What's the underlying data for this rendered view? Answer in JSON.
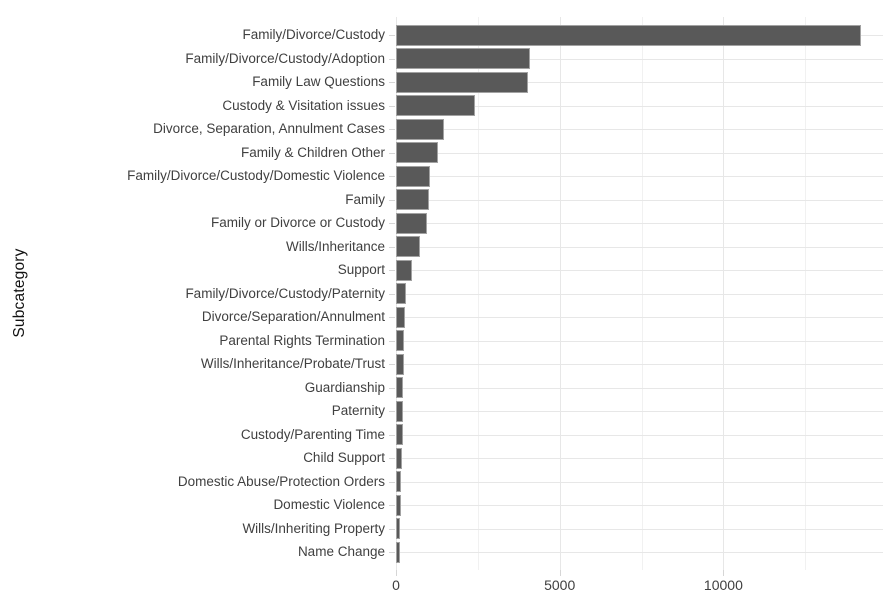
{
  "chart_data": {
    "type": "bar",
    "orientation": "horizontal",
    "title": "",
    "xlabel": "",
    "ylabel": "Subcategory",
    "legend_position": "none",
    "grid": "on",
    "xlim": [
      0,
      14875
    ],
    "x_tick_labels": [
      "0",
      "5000",
      "10000"
    ],
    "x_major_gridlines": [
      0,
      5000,
      10000
    ],
    "x_minor_gridlines": [
      2500,
      7500,
      12500
    ],
    "categories": [
      "Family/Divorce/Custody",
      "Family/Divorce/Custody/Adoption",
      "Family Law Questions",
      "Custody & Visitation issues",
      "Divorce, Separation, Annulment Cases",
      "Family & Children Other",
      "Family/Divorce/Custody/Domestic Violence",
      "Family",
      "Family or Divorce or Custody",
      "Wills/Inheritance",
      "Support",
      "Family/Divorce/Custody/Paternity",
      "Divorce/Separation/Annulment",
      "Parental Rights Termination",
      "Wills/Inheritance/Probate/Trust",
      "Guardianship",
      "Paternity",
      "Custody/Parenting Time",
      "Child Support",
      "Domestic Abuse/Protection Orders",
      "Domestic Violence",
      "Wills/Inheriting Property",
      "Name Change"
    ],
    "values": [
      14200,
      4080,
      4020,
      2420,
      1470,
      1280,
      1030,
      1000,
      960,
      740,
      480,
      310,
      260,
      240,
      230,
      220,
      210,
      200,
      190,
      160,
      150,
      130,
      120
    ],
    "colors": {
      "bar_fill": "#595959",
      "bar_border": "#a2a2a2",
      "grid_major": "#e7e7e7",
      "grid_minor": "#f1f1f1",
      "axis_tick": "#d6d6d6",
      "axis_text": "#404040",
      "axis_title": "#111111",
      "background": "#ffffff"
    }
  }
}
